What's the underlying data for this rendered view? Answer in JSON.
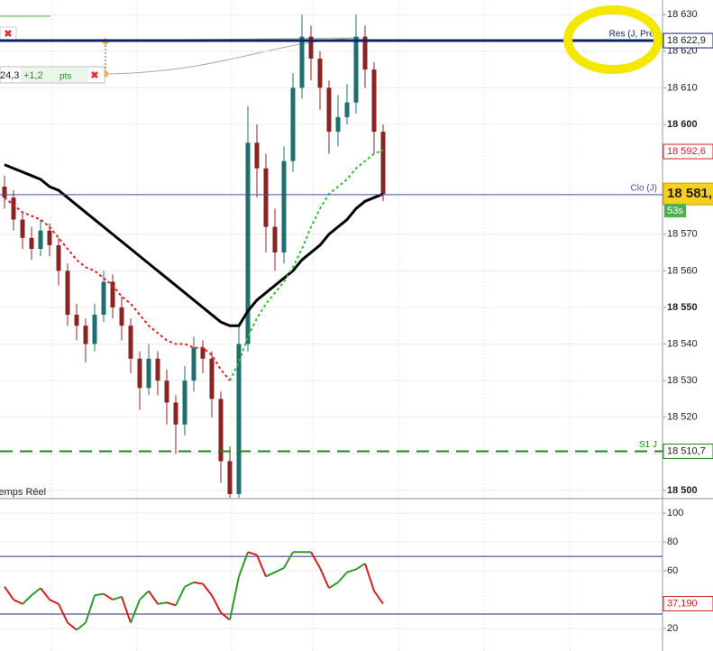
{
  "chart_data": [
    {
      "type": "candlestick",
      "mode_label": "Temps Réel",
      "ylim": [
        18498,
        18634
      ],
      "yticks": [
        {
          "value": 18500,
          "label": "18 500"
        },
        {
          "value": 18510,
          "label": "18 510"
        },
        {
          "value": 18520,
          "label": "18 520"
        },
        {
          "value": 18530,
          "label": "18 530"
        },
        {
          "value": 18540,
          "label": "18 540"
        },
        {
          "value": 18550,
          "label": "18 550"
        },
        {
          "value": 18560,
          "label": "18 560"
        },
        {
          "value": 18570,
          "label": "18 570"
        },
        {
          "value": 18600,
          "label": "18 600"
        },
        {
          "value": 18610,
          "label": "18 610"
        },
        {
          "value": 18620,
          "label": "18 620"
        },
        {
          "value": 18630,
          "label": "18 630"
        }
      ],
      "grid": true,
      "up_color": "#1f6f6f",
      "down_color": "#8a2424",
      "open": [
        18583,
        18580,
        18574,
        18569,
        18566,
        18571,
        18567,
        18560,
        18548,
        18545,
        18540,
        18548,
        18557,
        18550,
        18545,
        18536,
        18528,
        18536,
        18530,
        18524,
        18518,
        18530,
        18539,
        18536,
        18525,
        18508,
        18499,
        18540,
        18595,
        18588,
        18572,
        18565,
        18590,
        18610,
        18624,
        18618,
        18610,
        18598,
        18602,
        18606,
        18624,
        18615,
        18598
      ],
      "high": [
        18586,
        18582,
        18576,
        18572,
        18574,
        18573,
        18569,
        18562,
        18551,
        18547,
        18551,
        18560,
        18559,
        18553,
        18547,
        18538,
        18540,
        18538,
        18533,
        18526,
        18534,
        18542,
        18541,
        18538,
        18527,
        18512,
        18545,
        18605,
        18600,
        18592,
        18577,
        18594,
        18614,
        18630,
        18627,
        18620,
        18612,
        18608,
        18611,
        18630,
        18627,
        18617,
        18600
      ],
      "low": [
        18577,
        18571,
        18566,
        18563,
        18564,
        18564,
        18556,
        18545,
        18541,
        18535,
        18538,
        18546,
        18547,
        18541,
        18532,
        18522,
        18526,
        18526,
        18518,
        18510,
        18515,
        18527,
        18532,
        18520,
        18502,
        18498,
        18498,
        18538,
        18580,
        18565,
        18560,
        18562,
        18587,
        18607,
        18612,
        18604,
        18592,
        18594,
        18600,
        18603,
        18610,
        18592,
        18579
      ],
      "close": [
        18580,
        18574,
        18569,
        18566,
        18571,
        18567,
        18560,
        18548,
        18545,
        18540,
        18548,
        18557,
        18550,
        18545,
        18536,
        18528,
        18536,
        18530,
        18524,
        18518,
        18530,
        18539,
        18536,
        18525,
        18508,
        18499,
        18540,
        18595,
        18588,
        18572,
        18565,
        18590,
        18610,
        18624,
        18618,
        18610,
        18598,
        18602,
        18606,
        18624,
        18615,
        18598,
        18581
      ],
      "series": [
        {
          "color": "#000000",
          "width": 3,
          "dash": "none",
          "values": [
            18589,
            18588,
            18587,
            18586,
            18585,
            18583,
            18582,
            18580,
            18578,
            18576,
            18574,
            18572,
            18570,
            18568,
            18566,
            18564,
            18562,
            18560,
            18558,
            18556,
            18554,
            18552,
            18550,
            18548,
            18546,
            18545,
            18545,
            18549,
            18552,
            18554,
            18556,
            18558,
            18560,
            18563,
            18565,
            18567,
            18570,
            18572,
            18574,
            18577,
            18579,
            18580,
            18581
          ]
        },
        {
          "color": "#e02020",
          "width": 2,
          "dash": "3 3",
          "values": [
            18580,
            18578,
            18576,
            18575,
            18574,
            18572,
            18569,
            18566,
            18563,
            18561,
            18560,
            18558,
            18556,
            18553,
            18551,
            18548,
            18545,
            18543,
            18541,
            18540,
            18540,
            18539,
            18539,
            18537,
            18533,
            18530,
            null,
            null,
            null,
            null,
            null,
            null,
            null,
            null,
            null,
            null,
            null,
            null,
            null,
            null,
            null,
            null,
            null
          ]
        },
        {
          "color": "#33bb33",
          "width": 2,
          "dash": "3 3",
          "values": [
            null,
            null,
            null,
            null,
            null,
            null,
            null,
            null,
            null,
            null,
            null,
            null,
            null,
            null,
            null,
            null,
            null,
            null,
            null,
            null,
            null,
            null,
            null,
            null,
            null,
            18530,
            18535,
            18542,
            18547,
            18551,
            18554,
            18557,
            18561,
            18566,
            18572,
            18577,
            18581,
            18583,
            18585,
            18588,
            18590,
            18592,
            18593
          ]
        }
      ],
      "ma_label": {
        "value": 18592.6,
        "label": "18 592,6",
        "color": "#cc2222"
      },
      "levels": [
        {
          "name": "Res (J, Pré)",
          "value": 18622.9,
          "label": "18 622,9",
          "color": "#0b2566",
          "width": 3,
          "dash": "none"
        },
        {
          "name": "Clo (J)",
          "value": 18580.8,
          "color": "#4a4aa0",
          "width": 1,
          "dash": "none"
        },
        {
          "name": "S1 J",
          "value": 18510.7,
          "label": "18 510,7",
          "color": "#1a8a1a",
          "width": 2,
          "dash": "14 8"
        }
      ],
      "last_price": {
        "value": 18581,
        "label": "18 581,",
        "timer": "53s"
      },
      "order": {
        "price": "24,3",
        "change": "+1,2",
        "unit": "pts"
      }
    },
    {
      "type": "line",
      "ylim": [
        4.4,
        108.8
      ],
      "yticks": [
        20,
        60,
        80,
        100
      ],
      "grid": true,
      "up_color": "#2e9a2e",
      "down_color": "#d42020",
      "levels": [
        70,
        30
      ],
      "level_color": "#2a2a8a",
      "values": [
        49,
        40,
        37,
        43,
        48,
        40,
        37,
        24,
        19,
        24,
        43,
        44,
        40,
        42,
        24,
        40,
        46,
        37,
        38,
        36,
        49,
        52,
        51,
        43,
        31,
        26,
        56,
        73,
        71,
        56,
        59,
        62,
        73,
        73,
        73,
        62,
        48,
        52,
        59,
        61,
        65,
        46,
        37.19
      ],
      "last_label": "37,190"
    }
  ]
}
